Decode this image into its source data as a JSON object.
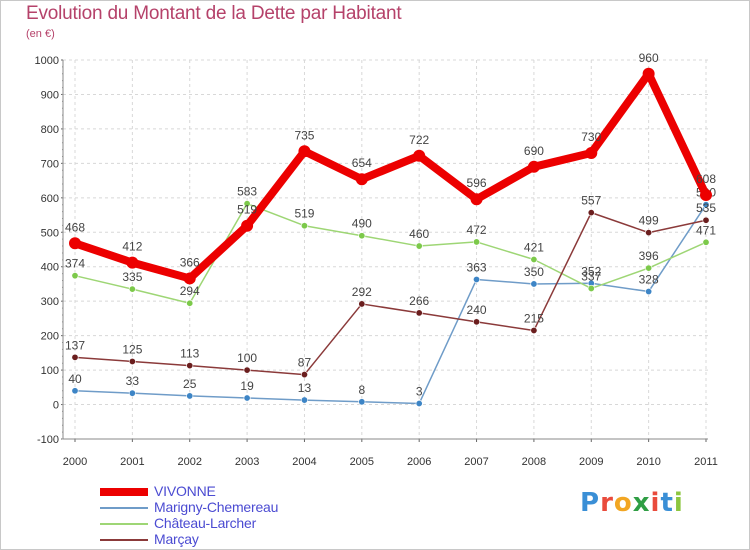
{
  "title": "Evolution du Montant de la Dette par Habitant",
  "subtitle": "(en €)",
  "brand": {
    "letters": [
      "P",
      "r",
      "o",
      "x",
      "i",
      "t",
      "i"
    ],
    "colors": [
      "#3a8fd6",
      "#e94b3c",
      "#f2a623",
      "#2f9e44",
      "#e94b3c",
      "#3a8fd6",
      "#8cc63f"
    ]
  },
  "chart_data": {
    "type": "line",
    "x": [
      "2000",
      "2001",
      "2002",
      "2003",
      "2004",
      "2005",
      "2006",
      "2007",
      "2008",
      "2009",
      "2010",
      "2011"
    ],
    "ylim": [
      -100,
      1000
    ],
    "yticks": [
      "-100",
      "0",
      "100",
      "200",
      "300",
      "400",
      "500",
      "600",
      "700",
      "800",
      "900",
      "1000"
    ],
    "grid": true,
    "legend_position": "bottom-left",
    "series": [
      {
        "name": "Marigny-Chemereau",
        "color": "#6f9cc8",
        "marker": "#3d85c6",
        "values": [
          40,
          33,
          25,
          19,
          13,
          8,
          3,
          363,
          350,
          352,
          328,
          580
        ]
      },
      {
        "name": "Château-Larcher",
        "color": "#9ed675",
        "marker": "#7cc94a",
        "values": [
          374,
          335,
          294,
          583,
          519,
          490,
          460,
          472,
          421,
          337,
          396,
          471
        ]
      },
      {
        "name": "Marçay",
        "color": "#8b3a3a",
        "marker": "#6b1e1e",
        "values": [
          137,
          125,
          113,
          100,
          87,
          292,
          266,
          240,
          215,
          557,
          499,
          535
        ]
      },
      {
        "name": "VIVONNE",
        "color": "#ec0000",
        "marker": "#ec0000",
        "values": [
          468,
          412,
          366,
          519,
          735,
          654,
          722,
          596,
          690,
          730,
          960,
          608
        ]
      }
    ],
    "legend": [
      "VIVONNE",
      "Marigny-Chemereau",
      "Château-Larcher",
      "Marçay"
    ]
  }
}
